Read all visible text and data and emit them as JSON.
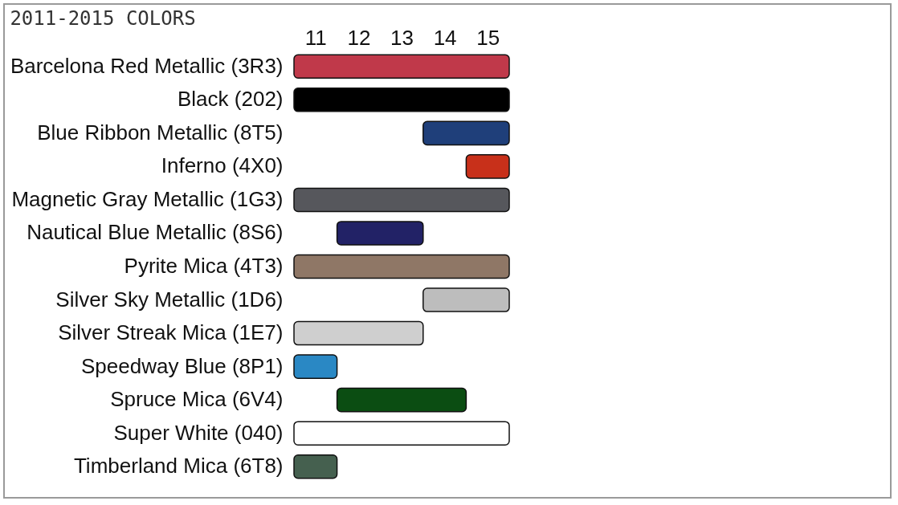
{
  "chart_data": {
    "type": "bar",
    "orientation": "horizontal",
    "title": "2011-2015 COLORS",
    "categories": [
      "Barcelona Red Metallic (3R3)",
      "Black (202)",
      "Blue Ribbon Metallic (8T5)",
      "Inferno (4X0)",
      "Magnetic Gray Metallic (1G3)",
      "Nautical Blue Metallic (8S6)",
      "Pyrite Mica (4T3)",
      "Silver Sky Metallic (1D6)",
      "Silver Streak Mica (1E7)",
      "Speedway Blue (8P1)",
      "Spruce Mica (6V4)",
      "Super White (040)",
      "Timberland Mica (6T8)"
    ],
    "base": [
      10.5,
      10.5,
      13.5,
      14.5,
      10.5,
      11.5,
      10.5,
      13.5,
      10.5,
      10.5,
      11.5,
      10.5,
      10.5
    ],
    "values": [
      5,
      5,
      2,
      1,
      5,
      2,
      5,
      2,
      3,
      1,
      3,
      5,
      1
    ],
    "colors": [
      "#c0394a",
      "#000000",
      "#1f3f7a",
      "#c8301a",
      "#56575c",
      "#222266",
      "#8f7766",
      "#bdbdbd",
      "#cfcfcf",
      "#2a88c4",
      "#0b4d12",
      "#ffffff",
      "#45604f"
    ],
    "xlim": [
      10.5,
      15.5
    ],
    "xticks": [
      11,
      12,
      13,
      14,
      15
    ]
  }
}
